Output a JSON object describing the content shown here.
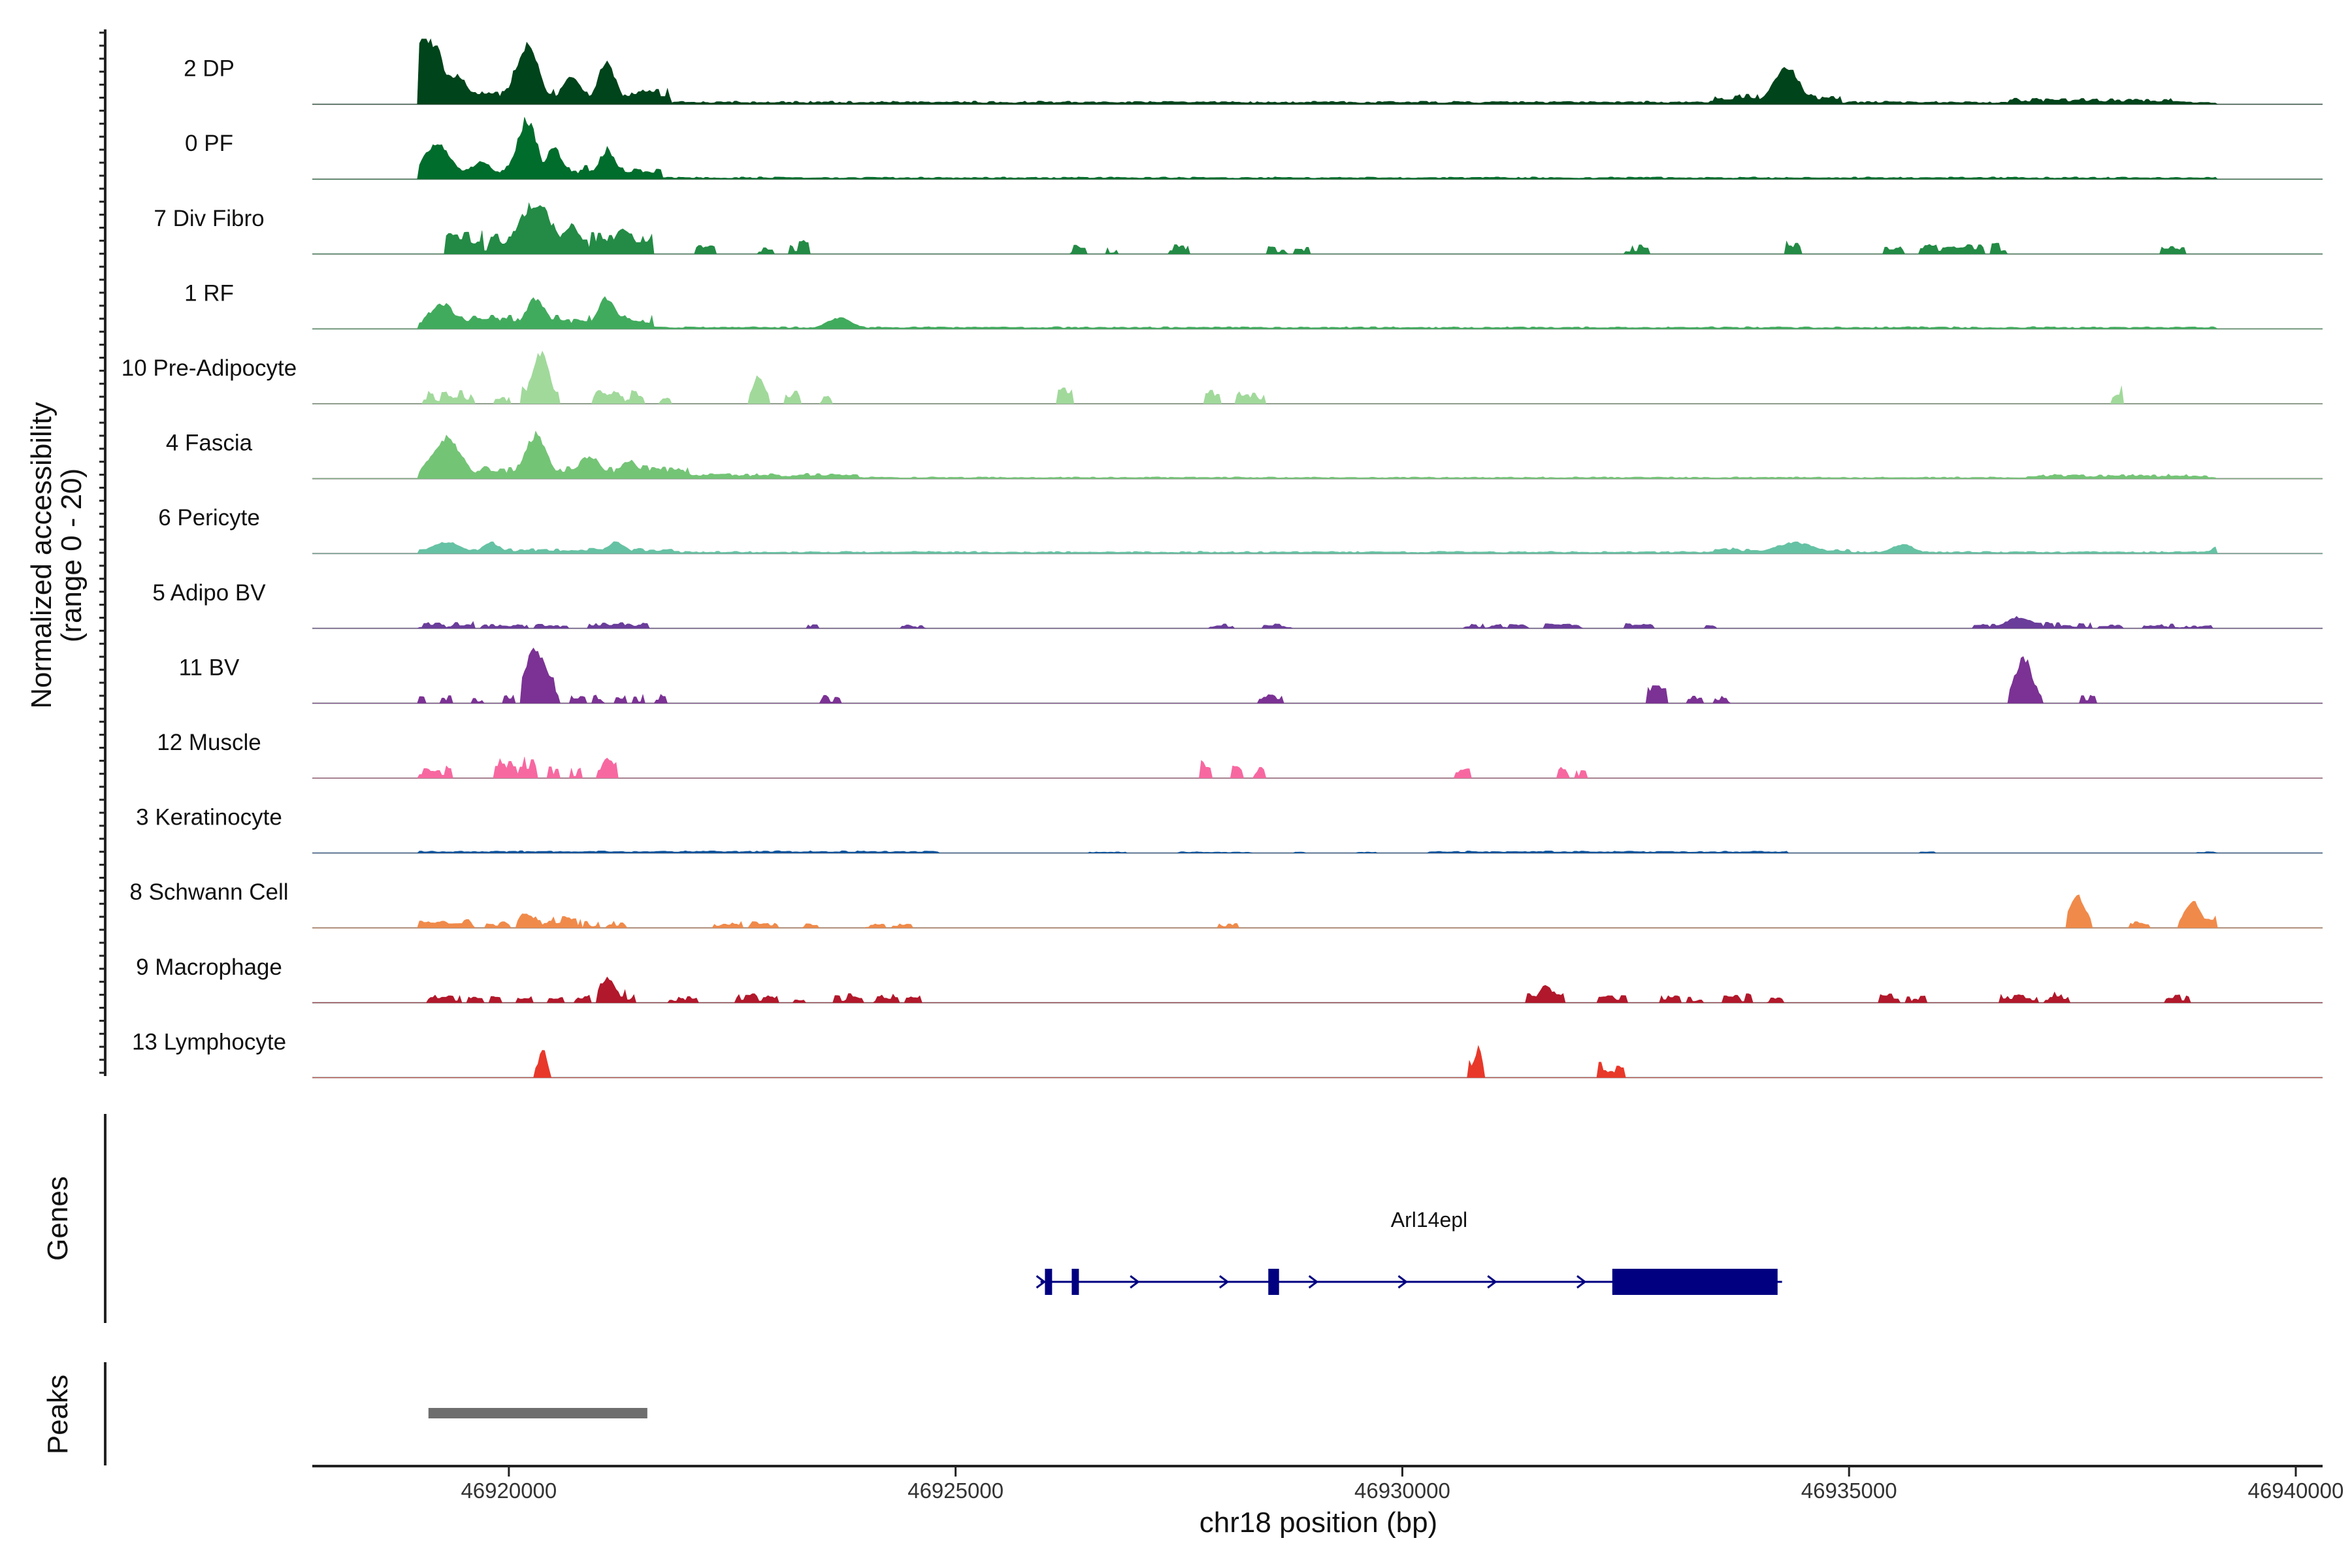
{
  "chart_data": {
    "type": "area",
    "title": "",
    "y_axis_title": [
      "Normalized accessibility",
      "(range 0 - 20)"
    ],
    "xlabel": "chr18 position (bp)",
    "xlim": [
      46917800,
      46940300
    ],
    "ylim": [
      0,
      20
    ],
    "x_ticks": [
      46920000,
      46925000,
      46930000,
      46935000,
      46940000
    ],
    "x_tick_labels": [
      "46920000",
      "46925000",
      "46930000",
      "46935000",
      "46940000"
    ],
    "tracks": [
      {
        "name": "2 DP",
        "color": "#00441b",
        "mode": "dense",
        "peaks": [
          [
            46919050,
            300,
            18,
            1
          ],
          [
            46919400,
            200,
            8,
            1
          ],
          [
            46920200,
            180,
            16,
            1
          ],
          [
            46920700,
            150,
            8,
            1
          ],
          [
            46921100,
            140,
            11,
            1
          ],
          [
            46934300,
            200,
            10,
            1
          ]
        ],
        "regions": [
          [
            46919000,
            46921800,
            3.5
          ],
          [
            46921800,
            46939100,
            0.7
          ],
          [
            46933500,
            46934900,
            2.5
          ],
          [
            46936800,
            46938600,
            1.4
          ]
        ]
      },
      {
        "name": "0 PF",
        "color": "#006d2c",
        "mode": "dense",
        "peaks": [
          [
            46919200,
            230,
            9,
            1
          ],
          [
            46919700,
            150,
            5,
            1
          ],
          [
            46920200,
            170,
            15,
            1
          ],
          [
            46920500,
            150,
            8,
            1
          ],
          [
            46921100,
            130,
            8,
            1
          ]
        ],
        "regions": [
          [
            46919000,
            46921700,
            3
          ],
          [
            46921700,
            46939100,
            0.5
          ]
        ]
      },
      {
        "name": "7 Div Fibro",
        "color": "#238b45",
        "mode": "sparse",
        "peaks": [
          [
            46920300,
            250,
            14,
            1
          ],
          [
            46920700,
            150,
            8,
            1
          ],
          [
            46921300,
            150,
            7,
            1
          ]
        ],
        "regions": [
          [
            46919300,
            46921600,
            5
          ],
          [
            46922100,
            46922300,
            3
          ],
          [
            46922800,
            46922950,
            2
          ],
          [
            46923150,
            46923350,
            3
          ],
          [
            46926300,
            46926450,
            2
          ],
          [
            46926700,
            46926800,
            1.5
          ],
          [
            46927400,
            46927600,
            3
          ],
          [
            46928500,
            46928700,
            2
          ],
          [
            46928800,
            46928950,
            2
          ],
          [
            46932500,
            46932750,
            2
          ],
          [
            46934300,
            46934450,
            3
          ],
          [
            46935400,
            46935600,
            2
          ],
          [
            46935800,
            46936500,
            2.5
          ],
          [
            46936600,
            46936750,
            3.5
          ],
          [
            46938500,
            46938750,
            2
          ]
        ]
      },
      {
        "name": "1 RF",
        "color": "#41ab5d",
        "mode": "dense",
        "peaks": [
          [
            46919250,
            200,
            7,
            1
          ],
          [
            46920300,
            160,
            8,
            1
          ],
          [
            46921100,
            150,
            8,
            1
          ],
          [
            46923700,
            200,
            3,
            1
          ]
        ],
        "regions": [
          [
            46919000,
            46921600,
            3
          ],
          [
            46921600,
            46939100,
            0.5
          ]
        ]
      },
      {
        "name": "10 Pre-Adipocyte",
        "color": "#a1d99b",
        "mode": "sparse",
        "peaks": [
          [
            46920350,
            130,
            14,
            1
          ],
          [
            46922800,
            100,
            7,
            1
          ]
        ],
        "regions": [
          [
            46919050,
            46919600,
            3
          ],
          [
            46919850,
            46920000,
            2
          ],
          [
            46920150,
            46920550,
            4
          ],
          [
            46920950,
            46921500,
            3
          ],
          [
            46921700,
            46921800,
            2
          ],
          [
            46922700,
            46922900,
            4
          ],
          [
            46923100,
            46923250,
            3
          ],
          [
            46923500,
            46923600,
            2
          ],
          [
            46926150,
            46926300,
            4
          ],
          [
            46927800,
            46927950,
            4
          ],
          [
            46928150,
            46928450,
            3
          ],
          [
            46937950,
            46938050,
            4
          ]
        ]
      },
      {
        "name": "4 Fascia",
        "color": "#74c476",
        "mode": "dense",
        "peaks": [
          [
            46919300,
            230,
            11,
            1
          ],
          [
            46920300,
            170,
            12,
            1
          ],
          [
            46920900,
            180,
            6,
            1
          ],
          [
            46921350,
            130,
            5,
            1
          ]
        ],
        "regions": [
          [
            46919000,
            46922000,
            3
          ],
          [
            46922000,
            46923900,
            1.2
          ],
          [
            46923900,
            46939100,
            0.4
          ],
          [
            46937000,
            46939000,
            1
          ]
        ]
      },
      {
        "name": "6 Pericyte",
        "color": "#66c2a4",
        "mode": "dense",
        "peaks": [
          [
            46919300,
            230,
            3,
            1
          ],
          [
            46919800,
            140,
            3,
            1
          ],
          [
            46921200,
            140,
            3,
            1
          ],
          [
            46934400,
            300,
            3,
            1
          ],
          [
            46935600,
            180,
            2.5,
            1
          ],
          [
            46939100,
            60,
            2,
            1
          ]
        ],
        "regions": [
          [
            46919000,
            46921900,
            1.2
          ],
          [
            46921900,
            46939100,
            0.5
          ],
          [
            46933500,
            46935000,
            1.3
          ]
        ]
      },
      {
        "name": "5 Adipo BV",
        "color": "#6a3d9a",
        "mode": "sparse",
        "peaks": [
          [
            46936900,
            200,
            3,
            1
          ]
        ],
        "regions": [
          [
            46919000,
            46919600,
            1.5
          ],
          [
            46919700,
            46920200,
            1
          ],
          [
            46920300,
            46920650,
            1
          ],
          [
            46920900,
            46921550,
            1.5
          ],
          [
            46923350,
            46923450,
            1
          ],
          [
            46924400,
            46924650,
            1
          ],
          [
            46927850,
            46928100,
            1
          ],
          [
            46928450,
            46928750,
            1
          ],
          [
            46930700,
            46931400,
            1
          ],
          [
            46931600,
            46932000,
            1
          ],
          [
            46932500,
            46932800,
            1.5
          ],
          [
            46933400,
            46933500,
            1
          ],
          [
            46936400,
            46937700,
            1.5
          ],
          [
            46937800,
            46938050,
            1
          ],
          [
            46938300,
            46939050,
            1
          ]
        ]
      },
      {
        "name": "11 BV",
        "color": "#7b3294",
        "mode": "sparse",
        "peaks": [
          [
            46920300,
            180,
            14,
            1
          ],
          [
            46936950,
            140,
            12,
            1
          ]
        ],
        "regions": [
          [
            46919000,
            46919050,
            3
          ],
          [
            46919250,
            46919350,
            2
          ],
          [
            46919600,
            46919700,
            2
          ],
          [
            46919950,
            46920050,
            2
          ],
          [
            46920150,
            46920550,
            6
          ],
          [
            46920700,
            46920850,
            2
          ],
          [
            46920950,
            46921050,
            2
          ],
          [
            46921200,
            46921300,
            2
          ],
          [
            46921400,
            46921500,
            2
          ],
          [
            46921650,
            46921750,
            3
          ],
          [
            46923500,
            46923700,
            2
          ],
          [
            46928400,
            46928650,
            2
          ],
          [
            46932750,
            46932950,
            5
          ],
          [
            46933200,
            46933350,
            2
          ],
          [
            46933500,
            46933650,
            2
          ],
          [
            46936800,
            46937150,
            4
          ],
          [
            46937600,
            46937750,
            3
          ]
        ]
      },
      {
        "name": "12 Muscle",
        "color": "#f768a1",
        "mode": "sparse",
        "peaks": [
          [
            46921100,
            80,
            6,
            1
          ]
        ],
        "regions": [
          [
            46919000,
            46919350,
            3
          ],
          [
            46919850,
            46920300,
            5
          ],
          [
            46920450,
            46920550,
            3
          ],
          [
            46920700,
            46920800,
            3
          ],
          [
            46921000,
            46921200,
            4
          ],
          [
            46927750,
            46927850,
            4
          ],
          [
            46928100,
            46928200,
            3
          ],
          [
            46928350,
            46928450,
            3
          ],
          [
            46930600,
            46930750,
            3
          ],
          [
            46931750,
            46931850,
            3
          ],
          [
            46931950,
            46932050,
            2
          ]
        ]
      },
      {
        "name": "3 Keratinocyte",
        "color": "#08519c",
        "mode": "dense",
        "peaks": [],
        "regions": [
          [
            46919000,
            46924800,
            0.5
          ],
          [
            46926500,
            46926900,
            0.3
          ],
          [
            46927500,
            46928300,
            0.3
          ],
          [
            46928800,
            46928900,
            0.3
          ],
          [
            46929500,
            46929700,
            0.3
          ],
          [
            46930300,
            46934300,
            0.45
          ],
          [
            46935800,
            46935950,
            0.3
          ],
          [
            46938900,
            46939100,
            0.3
          ]
        ]
      },
      {
        "name": "8 Schwann Cell",
        "color": "#f08a4b",
        "mode": "sparse",
        "peaks": [
          [
            46920200,
            120,
            4,
            1
          ],
          [
            46937550,
            130,
            9,
            1
          ],
          [
            46938850,
            130,
            7,
            1
          ]
        ],
        "regions": [
          [
            46919000,
            46919600,
            2
          ],
          [
            46919750,
            46920000,
            1.5
          ],
          [
            46920100,
            46920800,
            2.5
          ],
          [
            46920850,
            46921000,
            1.5
          ],
          [
            46921100,
            46921300,
            1.5
          ],
          [
            46922300,
            46922600,
            1.5
          ],
          [
            46922700,
            46923000,
            1.5
          ],
          [
            46923300,
            46923450,
            1
          ],
          [
            46924000,
            46924200,
            1
          ],
          [
            46924300,
            46924500,
            1
          ],
          [
            46927950,
            46928150,
            1
          ],
          [
            46937450,
            46937700,
            2
          ],
          [
            46938150,
            46938350,
            1.5
          ],
          [
            46938700,
            46939100,
            3
          ]
        ]
      },
      {
        "name": "9 Macrophage",
        "color": "#b2182b",
        "mode": "sparse",
        "peaks": [
          [
            46921100,
            120,
            7,
            1
          ],
          [
            46931600,
            100,
            5,
            1
          ]
        ],
        "regions": [
          [
            46919100,
            46919450,
            2
          ],
          [
            46919550,
            46919700,
            1.5
          ],
          [
            46919800,
            46919900,
            1.5
          ],
          [
            46920100,
            46920250,
            1.5
          ],
          [
            46920450,
            46920600,
            1.5
          ],
          [
            46920750,
            46920900,
            2
          ],
          [
            46921000,
            46921400,
            4
          ],
          [
            46921800,
            46922100,
            1.5
          ],
          [
            46922550,
            46923000,
            2
          ],
          [
            46923200,
            46923300,
            1.5
          ],
          [
            46923650,
            46923950,
            2
          ],
          [
            46924100,
            46924350,
            2
          ],
          [
            46924450,
            46924600,
            2
          ],
          [
            46931400,
            46931800,
            2.5
          ],
          [
            46932200,
            46932500,
            2
          ],
          [
            46932900,
            46933100,
            2
          ],
          [
            46933200,
            46933350,
            1.5
          ],
          [
            46933600,
            46933900,
            2
          ],
          [
            46934100,
            46934250,
            1.5
          ],
          [
            46935350,
            46935550,
            2
          ],
          [
            46935650,
            46935850,
            1.5
          ],
          [
            46936700,
            46937100,
            2
          ],
          [
            46937200,
            46937450,
            2.5
          ],
          [
            46938550,
            46938800,
            2
          ]
        ]
      },
      {
        "name": "13 Lymphocyte",
        "color": "#e8382a",
        "mode": "sparse",
        "peaks": [
          [
            46920380,
            60,
            8,
            1
          ],
          [
            46930850,
            60,
            8,
            1
          ]
        ],
        "regions": [
          [
            46920300,
            46920450,
            3
          ],
          [
            46930750,
            46930920,
            4
          ],
          [
            46932200,
            46932480,
            4
          ]
        ]
      }
    ],
    "genes": {
      "track_title": "Genes",
      "gene_name": "Arl14epl",
      "color": "#000080",
      "start": 46925950,
      "end": 46934250,
      "strand": "+",
      "exons": [
        [
          46926000,
          46926080
        ],
        [
          46926300,
          46926380
        ],
        [
          46928500,
          46928620
        ],
        [
          46932350,
          46934200
        ]
      ],
      "arrows": [
        46925950,
        46927000,
        46928000,
        46929000,
        46930000,
        46931000,
        46932000
      ]
    },
    "peaks_track": {
      "track_title": "Peaks",
      "color": "#6e6e6e",
      "regions": [
        [
          46919100,
          46921550
        ]
      ]
    }
  }
}
